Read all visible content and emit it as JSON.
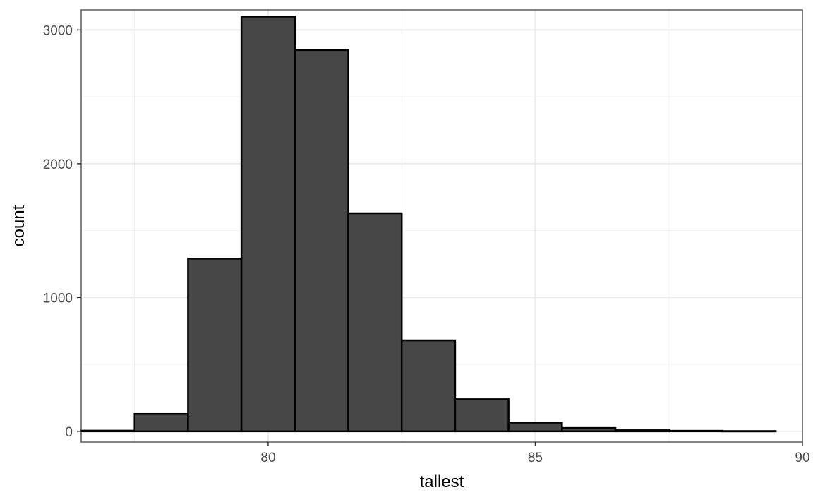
{
  "chart_data": {
    "type": "bar",
    "subtype": "histogram",
    "xlabel": "tallest",
    "ylabel": "count",
    "xlim": [
      76.5,
      90
    ],
    "ylim": [
      -80,
      3150
    ],
    "x_ticks": [
      80,
      85,
      90
    ],
    "y_ticks": [
      0,
      1000,
      2000,
      3000
    ],
    "bin_width": 1,
    "bins": [
      {
        "start": 76.5,
        "end": 77.5,
        "count": 5
      },
      {
        "start": 77.5,
        "end": 78.5,
        "count": 130
      },
      {
        "start": 78.5,
        "end": 79.5,
        "count": 1290
      },
      {
        "start": 79.5,
        "end": 80.5,
        "count": 3100
      },
      {
        "start": 80.5,
        "end": 81.5,
        "count": 2850
      },
      {
        "start": 81.5,
        "end": 82.5,
        "count": 1630
      },
      {
        "start": 82.5,
        "end": 83.5,
        "count": 680
      },
      {
        "start": 83.5,
        "end": 84.5,
        "count": 240
      },
      {
        "start": 84.5,
        "end": 85.5,
        "count": 65
      },
      {
        "start": 85.5,
        "end": 86.5,
        "count": 25
      },
      {
        "start": 86.5,
        "end": 87.5,
        "count": 8
      },
      {
        "start": 87.5,
        "end": 88.5,
        "count": 4
      },
      {
        "start": 88.5,
        "end": 89.5,
        "count": 2
      }
    ],
    "grid": true,
    "bar_fill": "#474747",
    "bar_stroke": "#000000",
    "grid_major_color": "#ebebeb",
    "grid_minor_color": "#f2f2f2",
    "panel_border_color": "#333333"
  }
}
